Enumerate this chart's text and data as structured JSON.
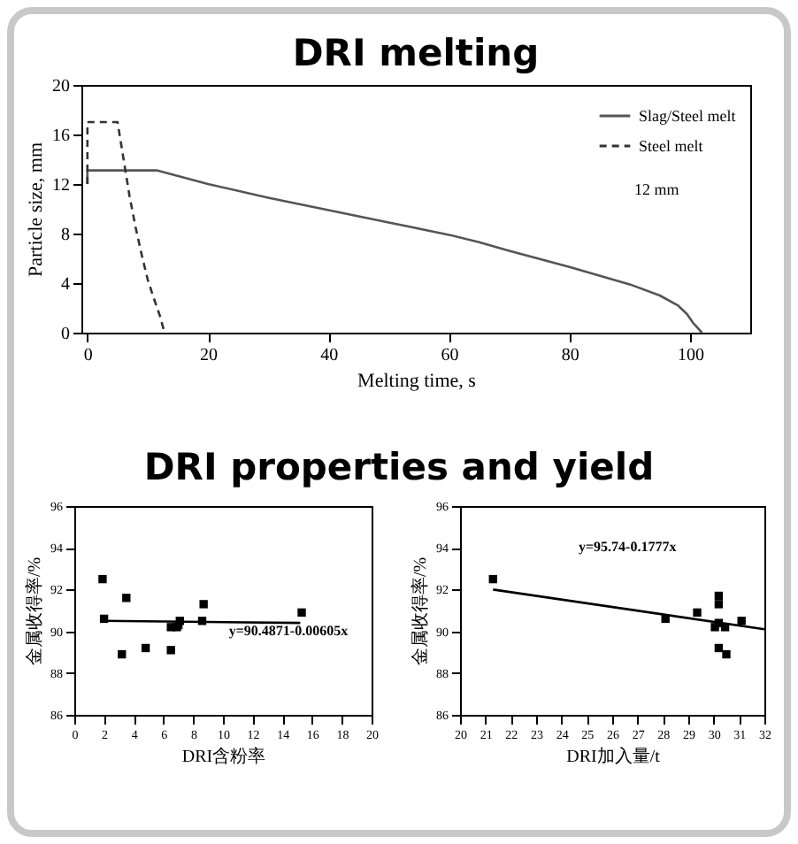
{
  "chart_data": [
    {
      "type": "line",
      "title": "DRI melting",
      "xlabel": "Melting time, s",
      "ylabel": "Particle size, mm",
      "xlim": [
        -1,
        110
      ],
      "xticks": [
        0,
        20,
        40,
        60,
        80,
        100
      ],
      "ylim": [
        0,
        20
      ],
      "yticks": [
        0,
        4,
        8,
        12,
        16,
        20
      ],
      "legend": "top right",
      "annotations": [
        "12 mm"
      ],
      "series": [
        {
          "name": "Slag/Steel melt",
          "color": "#555555",
          "line_style": "solid",
          "x": [
            0,
            0,
            11.5,
            20,
            30,
            40,
            50,
            60,
            65,
            70,
            80,
            90,
            95,
            98,
            99.5,
            100.5,
            102
          ],
          "values": [
            12,
            13.1,
            13.1,
            12,
            10.9,
            9.9,
            8.9,
            7.9,
            7.3,
            6.6,
            5.3,
            3.9,
            3,
            2.2,
            1.5,
            0.8,
            0
          ]
        },
        {
          "name": "Steel melt",
          "color": "#333333",
          "line_style": "dashed",
          "x": [
            0,
            0,
            5,
            6,
            7,
            8,
            9,
            10,
            11,
            12,
            12.8
          ],
          "values": [
            12,
            17,
            17,
            14,
            11,
            8.5,
            6.3,
            4.3,
            2.8,
            1.4,
            0
          ]
        }
      ]
    },
    {
      "type": "scatter",
      "title": "DRI properties and yield",
      "xlabel": "DRI含粉率",
      "ylabel": "金属收得率/%",
      "xlim": [
        0,
        20
      ],
      "xticks": [
        0,
        2,
        4,
        6,
        8,
        10,
        12,
        14,
        16,
        18,
        20
      ],
      "ylim": [
        86,
        96
      ],
      "yticks": [
        86,
        88,
        90,
        92,
        94,
        96
      ],
      "annotations": [
        "y=90.4871-0.00605x"
      ],
      "series": [
        {
          "color": "#000000",
          "marker": "square",
          "x": [
            1.9,
            2.0,
            3.2,
            3.5,
            4.8,
            6.5,
            6.5,
            6.9,
            7.0,
            7.1,
            8.6,
            8.7,
            15.3
          ],
          "values": [
            92.5,
            90.6,
            88.9,
            91.6,
            89.2,
            90.2,
            89.1,
            90.2,
            90.3,
            90.5,
            90.5,
            91.3,
            90.9
          ]
        },
        {
          "type": "line",
          "color": "#000000",
          "line_style": "solid",
          "x": [
            2,
            15.2
          ],
          "values": [
            90.5,
            90.4
          ]
        }
      ]
    },
    {
      "type": "scatter",
      "xlabel": "DRI加入量/t",
      "ylabel": "金属收得率/%",
      "xlim": [
        20,
        32
      ],
      "xticks": [
        20,
        21,
        22,
        23,
        24,
        25,
        26,
        27,
        28,
        29,
        30,
        31,
        32
      ],
      "ylim": [
        86,
        96
      ],
      "yticks": [
        86,
        88,
        90,
        92,
        94,
        96
      ],
      "annotations": [
        "y=95.74-0.1777x"
      ],
      "series": [
        {
          "color": "#000000",
          "marker": "square",
          "x": [
            21.3,
            28.1,
            29.35,
            30.05,
            30.2,
            30.2,
            30.2,
            30.2,
            30.45,
            30.5,
            31.1
          ],
          "values": [
            92.5,
            90.6,
            90.9,
            90.2,
            91.7,
            91.3,
            90.4,
            89.2,
            90.2,
            88.9,
            90.5
          ]
        },
        {
          "type": "line",
          "color": "#000000",
          "line_style": "solid",
          "x": [
            21.3,
            32
          ],
          "values": [
            92.0,
            90.1
          ]
        }
      ]
    }
  ]
}
